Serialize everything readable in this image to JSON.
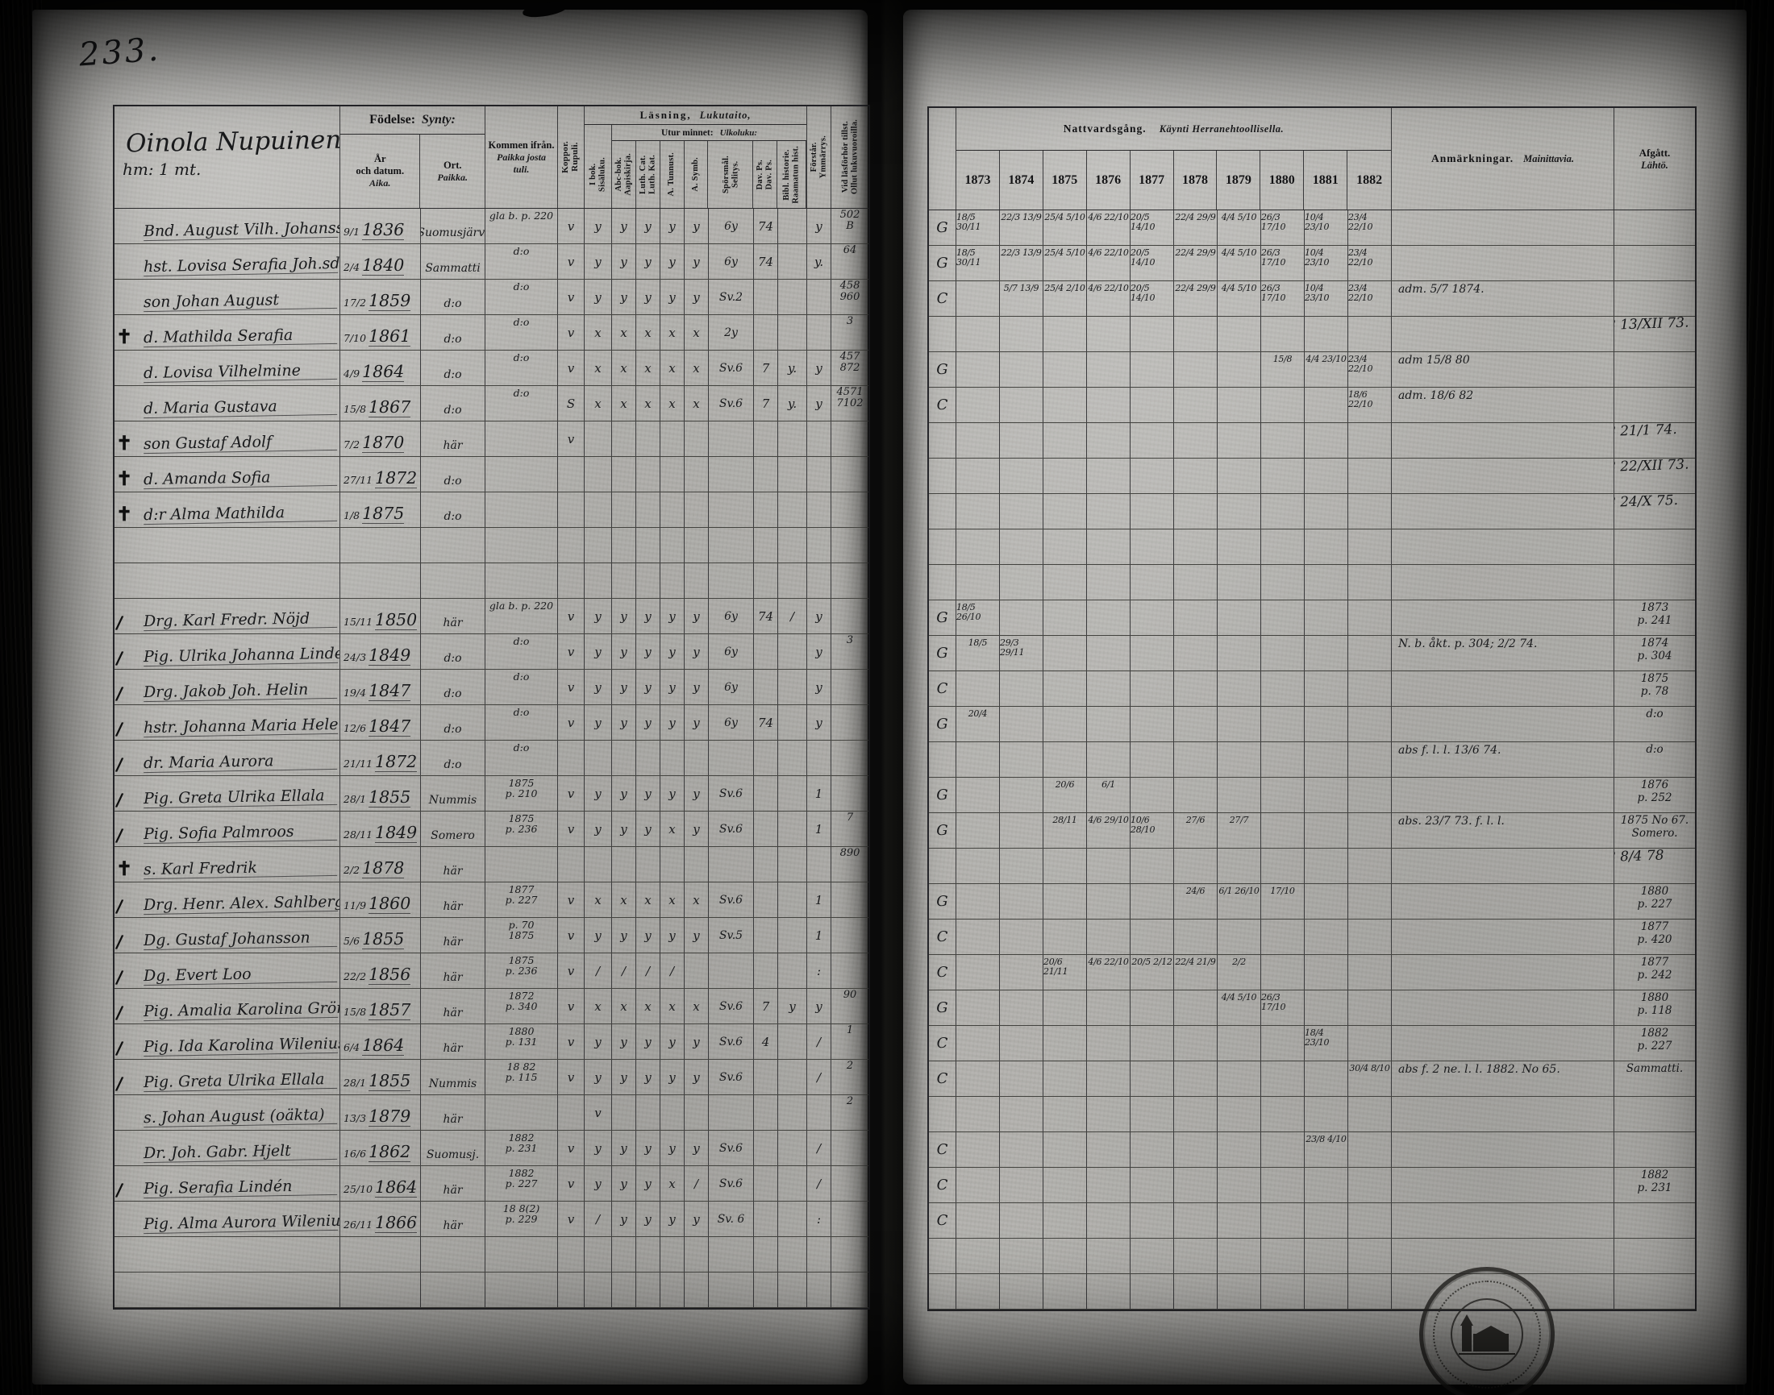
{
  "page_number": "233.",
  "colors": {
    "paper": "#b2b1ad",
    "ink": "#191a1c",
    "cover": "#0b0b0a"
  },
  "title": {
    "script": "Oinola Nupuinen",
    "sub": "hm: 1 mt."
  },
  "headers": {
    "fodelse_sv": "Födelse:",
    "fodelse_fi": "Synty:",
    "ar_lines": "År\noch datum.",
    "ar_fi": "Aika.",
    "ort_sv": "Ort.",
    "ort_fi": "Paikka.",
    "kommen_sv": "Kommen ifrån.",
    "kommen_fi": "Paikka josta\ntuli.",
    "koppor": "Koppor.\nRupuli.",
    "lasning_sv": "Läsning,",
    "lasning_fi": "Lukutaito,",
    "utur_sv": "Utur minnet:",
    "utur_fi": "Ulkoluku:",
    "sub_cols": [
      "I bok.\nSisäluku.",
      "Abc-bok.\nAapiskirja.",
      "Luth. Cat.\nLuth. Kat.",
      "A. Tunnust.",
      "A. Symb.",
      "Spörsmål.\nSelitys.",
      "Dav. Ps.\nDav. Ps.",
      "Bibl. historie.\nRaamatun hist."
    ],
    "forstar": "Förstår.\nYmmärrys.",
    "vidlasforhor": "Vid läsförhör tillst.\nOllut lukuvuoroilla.",
    "nattvard_sv": "Nattvardsgång.",
    "nattvard_fi": "Käynti Herranehtoollisella.",
    "years": [
      "1873",
      "1874",
      "1875",
      "1876",
      "1877",
      "1878",
      "1879",
      "1880",
      "1881",
      "1882"
    ],
    "anm_sv": "Anmärkningar.",
    "anm_fi": "Mainittavia.",
    "afgatt_sv": "Afgått.",
    "afgatt_fi": "Lähtö."
  },
  "rows": [
    {
      "lead": "",
      "name": "Bnd. August Vilh. Johansson",
      "date": "9/1",
      "year": "1836",
      "ort": "Suomusjärvi",
      "kommen": [
        "gla b. p. 220"
      ],
      "kop": "v",
      "m": [
        "y",
        "y",
        "y",
        "y",
        "y",
        "6y",
        "74",
        ""
      ],
      "forst": "y",
      "lasf": [
        "502",
        "B"
      ],
      "g": "G",
      "natt": [
        "18/5 30/11",
        "22/3 13/9",
        "25/4 5/10",
        "4/6 22/10",
        "20/5 14/10",
        "22/4 29/9",
        "4/4 5/10",
        "26/3 17/10",
        "10/4 23/10",
        "23/4 22/10"
      ],
      "anm": "",
      "afg": []
    },
    {
      "lead": "",
      "name": "hst. Lovisa Serafia Joh.sdott.",
      "date": "2/4",
      "year": "1840",
      "ort": "Sammatti",
      "kommen": [
        "d:o"
      ],
      "kop": "v",
      "m": [
        "y",
        "y",
        "y",
        "y",
        "y",
        "6y",
        "74",
        ""
      ],
      "forst": "y.",
      "lasf": [
        "64"
      ],
      "g": "G",
      "natt": [
        "18/5 30/11",
        "22/3 13/9",
        "25/4 5/10",
        "4/6 22/10",
        "20/5 14/10",
        "22/4 29/9",
        "4/4 5/10",
        "26/3 17/10",
        "10/4 23/10",
        "23/4 22/10"
      ],
      "anm": "",
      "afg": []
    },
    {
      "lead": "",
      "name": "son Johan August",
      "date": "17/2",
      "year": "1859",
      "ort": "d:o",
      "kommen": [
        "d:o"
      ],
      "kop": "v",
      "m": [
        "y",
        "y",
        "y",
        "y",
        "y",
        "Sv.2",
        "",
        ""
      ],
      "forst": "",
      "lasf": [
        "458",
        "960"
      ],
      "g": "C",
      "natt": [
        "",
        "5/7 13/9",
        "25/4 2/10",
        "4/6 22/10",
        "20/5 14/10",
        "22/4 29/9",
        "4/4 5/10",
        "26/3 17/10",
        "10/4 23/10",
        "23/4 22/10"
      ],
      "anm": "adm. 5/7 1874.",
      "afg": []
    },
    {
      "lead": "†",
      "name": "d. Mathilda Serafia",
      "date": "7/10",
      "year": "1861",
      "ort": "d:o",
      "kommen": [
        "d:o"
      ],
      "kop": "v",
      "m": [
        "x",
        "x",
        "x",
        "x",
        "x",
        "2y",
        "",
        ""
      ],
      "forst": "",
      "lasf": [
        "3"
      ],
      "g": "",
      "natt": [],
      "anm": "",
      "afg": [
        "Död 18 13/XII 73."
      ]
    },
    {
      "lead": "",
      "name": "d. Lovisa Vilhelmine",
      "date": "4/9",
      "year": "1864",
      "ort": "d:o",
      "kommen": [
        "d:o"
      ],
      "kop": "v",
      "m": [
        "x",
        "x",
        "x",
        "x",
        "x",
        "Sv.6",
        "7",
        "y."
      ],
      "forst": "y",
      "lasf": [
        "457",
        "872"
      ],
      "g": "G",
      "natt": [
        "",
        "",
        "",
        "",
        "",
        "",
        "",
        "15/8",
        "4/4 23/10",
        "23/4 22/10"
      ],
      "anm": "adm 15/8 80",
      "afg": []
    },
    {
      "lead": "",
      "name": "d. Maria Gustava",
      "date": "15/8",
      "year": "1867",
      "ort": "d:o",
      "kommen": [
        "d:o"
      ],
      "kop": "S",
      "m": [
        "x",
        "x",
        "x",
        "x",
        "x",
        "Sv.6",
        "7",
        "y."
      ],
      "forst": "y",
      "lasf": [
        "4571",
        "7102"
      ],
      "g": "C",
      "natt": [
        "",
        "",
        "",
        "",
        "",
        "",
        "",
        "",
        "",
        "18/6 22/10"
      ],
      "anm": "adm. 18/6 82",
      "afg": []
    },
    {
      "lead": "†",
      "name": "son Gustaf Adolf",
      "date": "7/2",
      "year": "1870",
      "ort": "här",
      "kommen": [],
      "kop": "v",
      "m": [],
      "forst": "",
      "lasf": [],
      "g": "",
      "natt": [],
      "anm": "",
      "afg": [
        "Död 18 21/1 74."
      ]
    },
    {
      "lead": "†",
      "name": "d. Amanda Sofia",
      "date": "27/11",
      "year": "1872",
      "ort": "d:o",
      "kommen": [],
      "kop": "",
      "m": [],
      "forst": "",
      "lasf": [],
      "g": "",
      "natt": [],
      "anm": "",
      "afg": [
        "Död 18 22/XII 73."
      ]
    },
    {
      "lead": "†",
      "name": "d:r Alma Mathilda",
      "date": "1/8",
      "year": "1875",
      "ort": "d:o",
      "kommen": [],
      "kop": "",
      "m": [],
      "forst": "",
      "lasf": [],
      "g": "",
      "natt": [],
      "anm": "",
      "afg": [
        "Död 18 24/X 75."
      ]
    },
    {
      "blank": true
    },
    {
      "blank": true
    },
    {
      "lead": "∕",
      "name": "Drg. Karl Fredr. Nöjd",
      "date": "15/11",
      "year": "1850",
      "ort": "här",
      "kommen": [
        "gla b. p. 220"
      ],
      "kop": "v",
      "m": [
        "y",
        "y",
        "y",
        "y",
        "y",
        "6y",
        "74",
        "/"
      ],
      "forst": "y",
      "lasf": [],
      "g": "G",
      "natt": [
        "18/5 26/10",
        "",
        "",
        "",
        "",
        "",
        "",
        "",
        "",
        ""
      ],
      "anm": "",
      "afg": [
        "1873",
        "p. 241"
      ]
    },
    {
      "lead": "∕",
      "name": "Pig. Ulrika Johanna Lindell",
      "date": "24/3",
      "year": "1849",
      "ort": "d:o",
      "kommen": [
        "d:o"
      ],
      "kop": "v",
      "m": [
        "y",
        "y",
        "y",
        "y",
        "y",
        "6y",
        "",
        ""
      ],
      "forst": "y",
      "lasf": [
        "3"
      ],
      "g": "G",
      "natt": [
        "18/5",
        "29/3 29/11",
        "",
        "",
        "",
        "",
        "",
        "",
        "",
        ""
      ],
      "anm": "N. b. åkt. p. 304;  2/2 74.",
      "afg": [
        "1874",
        "p. 304"
      ]
    },
    {
      "lead": "∕",
      "name": "Drg. Jakob Joh. Helin",
      "date": "19/4",
      "year": "1847",
      "ort": "d:o",
      "kommen": [
        "d:o"
      ],
      "kop": "v",
      "m": [
        "y",
        "y",
        "y",
        "y",
        "y",
        "6y",
        "",
        ""
      ],
      "forst": "y",
      "lasf": [],
      "g": "C",
      "natt": [],
      "anm": "",
      "afg": [
        "1875",
        "p. 78"
      ]
    },
    {
      "lead": "∕",
      "name": "hstr. Johanna Maria Helenius",
      "date": "12/6",
      "year": "1847",
      "ort": "d:o",
      "kommen": [
        "d:o"
      ],
      "kop": "v",
      "m": [
        "y",
        "y",
        "y",
        "y",
        "y",
        "6y",
        "74",
        ""
      ],
      "forst": "y",
      "lasf": [],
      "g": "G",
      "natt": [
        "20/4",
        "",
        "",
        "",
        "",
        "",
        "",
        "",
        "",
        ""
      ],
      "anm": "",
      "afg": [
        "d:o"
      ]
    },
    {
      "lead": "∕",
      "name": "dr. Maria Aurora",
      "date": "21/11",
      "year": "1872",
      "ort": "d:o",
      "kommen": [
        "d:o"
      ],
      "kop": "",
      "m": [],
      "forst": "",
      "lasf": [],
      "g": "",
      "natt": [],
      "anm": "abs f. l. l. 13/6 74.",
      "afg": [
        "d:o"
      ]
    },
    {
      "lead": "∕",
      "name": "Pig. Greta Ulrika Ellala",
      "date": "28/1",
      "year": "1855",
      "ort": "Nummis",
      "kommen": [
        "1875",
        "p. 210"
      ],
      "kop": "v",
      "m": [
        "y",
        "y",
        "y",
        "y",
        "y",
        "Sv.6",
        "",
        ""
      ],
      "forst": "1",
      "lasf": [],
      "g": "G",
      "natt": [
        "",
        "",
        "20/6",
        "6/1",
        "",
        "",
        "",
        "",
        "",
        ""
      ],
      "anm": "",
      "afg": [
        "1876",
        "p. 252"
      ]
    },
    {
      "lead": "∕",
      "name": "Pig. Sofia Palmroos",
      "date": "28/11",
      "year": "1849",
      "ort": "Somero",
      "kommen": [
        "1875",
        "p. 236"
      ],
      "kop": "v",
      "m": [
        "y",
        "y",
        "y",
        "x",
        "y",
        "Sv.6",
        "",
        ""
      ],
      "forst": "1",
      "lasf": [
        "7"
      ],
      "g": "G",
      "natt": [
        "",
        "",
        "28/11",
        "4/6 29/10",
        "10/6 28/10",
        "27/6",
        "27/7",
        "",
        "",
        ""
      ],
      "anm": "abs. 23/7 73. f. l. l.",
      "afg": [
        "1875 No 67.",
        "Somero."
      ]
    },
    {
      "lead": "†",
      "name": "s. Karl Fredrik",
      "date": "2/2",
      "year": "1878",
      "ort": "här",
      "kommen": [],
      "kop": "",
      "m": [],
      "forst": "",
      "lasf": [
        "890"
      ],
      "g": "",
      "natt": [],
      "anm": "",
      "afg": [
        "Död 18 8/4 78"
      ]
    },
    {
      "lead": "∕",
      "name": "Drg. Henr. Alex. Sahlberg",
      "date": "11/9",
      "year": "1860",
      "ort": "här",
      "kommen": [
        "1877",
        "p. 227"
      ],
      "kop": "v",
      "m": [
        "x",
        "x",
        "x",
        "x",
        "x",
        "Sv.6",
        "",
        ""
      ],
      "forst": "1",
      "lasf": [],
      "g": "G",
      "natt": [
        "",
        "",
        "",
        "",
        "",
        "24/6",
        "6/1 26/10",
        "17/10",
        "",
        ""
      ],
      "anm": "",
      "afg": [
        "1880",
        "p. 227"
      ]
    },
    {
      "lead": "∕",
      "name": "Dg. Gustaf Johansson",
      "date": "5/6",
      "year": "1855",
      "ort": "här",
      "kommen": [
        "p. 70",
        "1875"
      ],
      "kop": "v",
      "m": [
        "y",
        "y",
        "y",
        "y",
        "y",
        "Sv.5",
        "",
        ""
      ],
      "forst": "1",
      "lasf": [],
      "g": "C",
      "natt": [],
      "anm": "",
      "afg": [
        "1877",
        "p. 420"
      ]
    },
    {
      "lead": "∕",
      "name": "Dg. Evert Loo",
      "date": "22/2",
      "year": "1856",
      "ort": "här",
      "kommen": [
        "1875",
        "p. 236"
      ],
      "kop": "v",
      "m": [
        "/",
        "/",
        "/",
        "/",
        "",
        "",
        "",
        ""
      ],
      "forst": ":",
      "lasf": [],
      "g": "C",
      "natt": [
        "",
        "",
        "20/6 21/11",
        "4/6 22/10",
        "20/5 2/12",
        "22/4 21/9",
        "2/2",
        "",
        "",
        ""
      ],
      "anm": "",
      "afg": [
        "1877",
        "p. 242"
      ]
    },
    {
      "lead": "∕",
      "name": "Pig. Amalia Karolina Grönlund",
      "date": "15/8",
      "year": "1857",
      "ort": "här",
      "kommen": [
        "1872",
        "p. 340"
      ],
      "kop": "v",
      "m": [
        "x",
        "x",
        "x",
        "x",
        "x",
        "Sv.6",
        "7",
        "y"
      ],
      "forst": "y",
      "lasf": [
        "90"
      ],
      "g": "G",
      "natt": [
        "",
        "",
        "",
        "",
        "",
        "",
        "4/4 5/10",
        "26/3 17/10",
        "",
        ""
      ],
      "anm": "",
      "afg": [
        "1880",
        "p. 118"
      ]
    },
    {
      "lead": "∕",
      "name": "Pig. Ida Karolina Wilenius",
      "date": "6/4",
      "year": "1864",
      "ort": "här",
      "kommen": [
        "1880",
        "p. 131"
      ],
      "kop": "v",
      "m": [
        "y",
        "y",
        "y",
        "y",
        "y",
        "Sv.6",
        "4",
        ""
      ],
      "forst": "/",
      "lasf": [
        "1"
      ],
      "g": "C",
      "natt": [
        "",
        "",
        "",
        "",
        "",
        "",
        "",
        "",
        "18/4 23/10",
        ""
      ],
      "anm": "",
      "afg": [
        "1882",
        "p. 227"
      ]
    },
    {
      "lead": "∕",
      "name": "Pig. Greta Ulrika Ellala",
      "date": "28/1",
      "year": "1855",
      "ort": "Nummis",
      "kommen": [
        "18 82",
        "p. 115"
      ],
      "kop": "v",
      "m": [
        "y",
        "y",
        "y",
        "y",
        "y",
        "Sv.6",
        "",
        ""
      ],
      "forst": "/",
      "lasf": [
        "2"
      ],
      "g": "C",
      "natt": [
        "",
        "",
        "",
        "",
        "",
        "",
        "",
        "",
        "",
        "30/4 8/10"
      ],
      "anm": "abs f. 2 ne. l. l.   1882. No 65.",
      "afg": [
        "Sammatti."
      ]
    },
    {
      "lead": "",
      "name": "s. Johan August (oäkta)",
      "date": "13/3",
      "year": "1879",
      "ort": "här",
      "kommen": [],
      "kop": "",
      "m": [
        "v",
        "",
        "",
        "",
        "",
        "",
        "",
        ""
      ],
      "forst": "",
      "lasf": [
        "2"
      ],
      "g": "",
      "natt": [],
      "anm": "",
      "afg": []
    },
    {
      "lead": "",
      "name": "Dr. Joh. Gabr. Hjelt",
      "date": "16/6",
      "year": "1862",
      "ort": "Suomusj.",
      "kommen": [
        "1882",
        "p. 231"
      ],
      "kop": "v",
      "m": [
        "y",
        "y",
        "y",
        "y",
        "y",
        "Sv.6",
        "",
        ""
      ],
      "forst": "/",
      "lasf": [],
      "g": "C",
      "natt": [
        "",
        "",
        "",
        "",
        "",
        "",
        "",
        "",
        "23/8 4/10",
        ""
      ],
      "anm": "",
      "afg": []
    },
    {
      "lead": "∕",
      "name": "Pig. Serafia Lindén",
      "date": "25/10",
      "year": "1864",
      "ort": "här",
      "kommen": [
        "1882",
        "p. 227"
      ],
      "kop": "v",
      "m": [
        "y",
        "y",
        "y",
        "x",
        "/",
        "Sv.6",
        "",
        ""
      ],
      "forst": "/",
      "lasf": [],
      "g": "C",
      "natt": [],
      "anm": "",
      "afg": [
        "1882",
        "p. 231"
      ]
    },
    {
      "lead": "",
      "name": "Pig. Alma Aurora Wilenius",
      "date": "26/11",
      "year": "1866",
      "ort": "här",
      "kommen": [
        "18 8(2)",
        "p. 229"
      ],
      "kop": "v",
      "m": [
        "/",
        "y",
        "y",
        "y",
        "y",
        "Sv. 6",
        "",
        ""
      ],
      "forst": ":",
      "lasf": [],
      "g": "C",
      "natt": [],
      "anm": "",
      "afg": []
    },
    {
      "blank": true
    },
    {
      "blank": true
    }
  ],
  "stamp": {
    "emblem": "church-icon"
  }
}
